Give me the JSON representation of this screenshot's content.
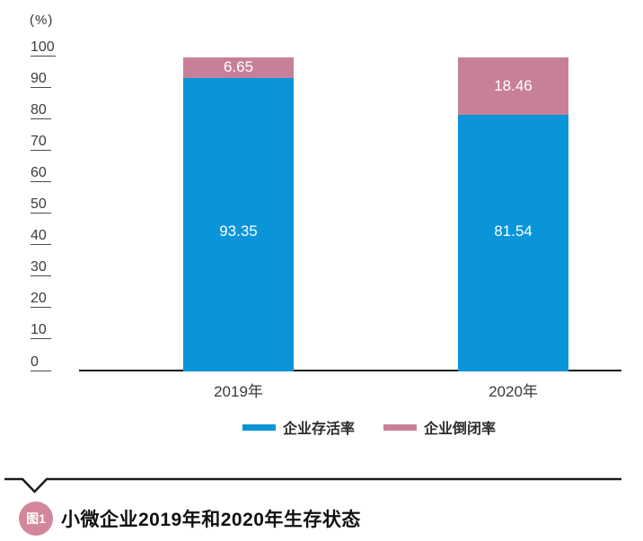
{
  "chart_data": {
    "type": "bar",
    "stacked": true,
    "unit_label": "(%)",
    "categories": [
      "2019年",
      "2020年"
    ],
    "series": [
      {
        "name": "企业存活率",
        "color": "#0995d8",
        "values": [
          93.35,
          81.54
        ]
      },
      {
        "name": "企业倒闭率",
        "color": "#c8809a",
        "values": [
          6.65,
          18.46
        ]
      }
    ],
    "y_ticks": [
      0,
      10,
      20,
      30,
      40,
      50,
      60,
      70,
      80,
      90,
      100
    ],
    "ylim": [
      0,
      100
    ],
    "ytick_step": 10,
    "grid": false,
    "value_label_color": "#ffffff",
    "legend_position": "bottom"
  },
  "caption": {
    "badge_label": "图1",
    "title": "小微企业2019年和2020年生存状态"
  },
  "colors": {
    "survival_blue": "#0995d8",
    "closure_pink": "#c8809a",
    "badge_pink": "#d2879c",
    "axis": "#1a1a1a"
  }
}
